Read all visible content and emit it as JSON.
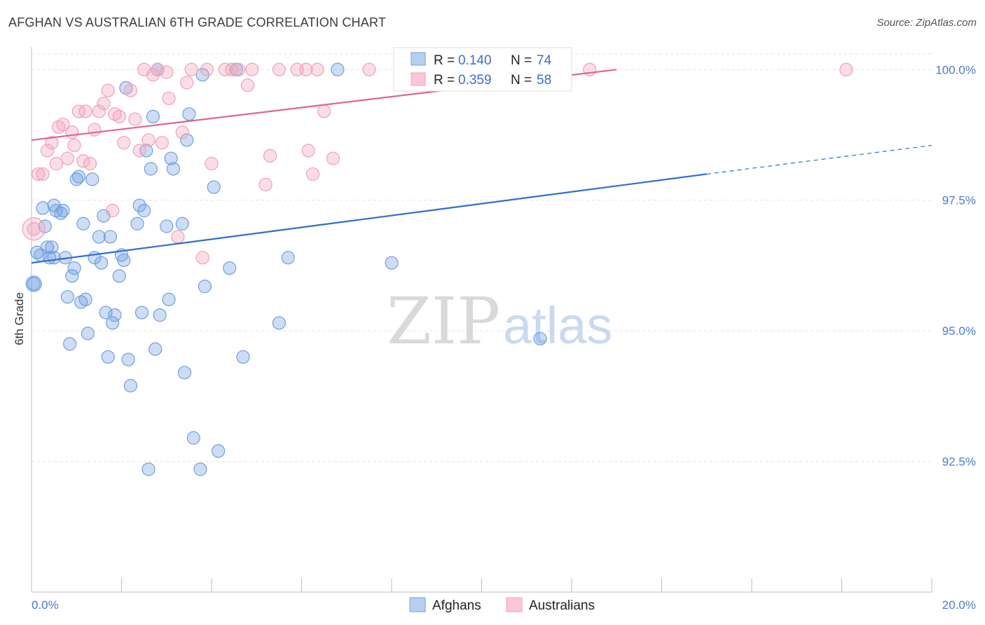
{
  "header": {
    "title": "AFGHAN VS AUSTRALIAN 6TH GRADE CORRELATION CHART",
    "source": "Source: ZipAtlas.com"
  },
  "watermark": {
    "zip": "ZIP",
    "atlas": "atlas"
  },
  "legend": {
    "entries": [
      {
        "r_label": "R =",
        "r_value": "0.140",
        "n_label": "N =",
        "n_value": "74"
      },
      {
        "r_label": "R =",
        "r_value": "0.359",
        "n_label": "N =",
        "n_value": "58"
      }
    ]
  },
  "chart_data": {
    "type": "scatter",
    "title": "AFGHAN VS AUSTRALIAN 6TH GRADE CORRELATION CHART",
    "xlabel": "",
    "ylabel": "6th Grade",
    "xlim": [
      0.0,
      20.0
    ],
    "ylim": [
      90.0,
      100.5
    ],
    "x_tick_labels": [
      "0.0%",
      "20.0%"
    ],
    "y_ticks": [
      92.5,
      95.0,
      97.5,
      100.0
    ],
    "y_tick_labels": [
      "92.5%",
      "95.0%",
      "97.5%",
      "100.0%"
    ],
    "grid": true,
    "legend_position": "top-center",
    "colors": {
      "afghans": "#6f9fe0",
      "australians": "#f0a0b8",
      "afghans_line": "#2b6fd0",
      "australians_line": "#e06590"
    },
    "series": [
      {
        "name": "Afghans",
        "r": 0.14,
        "n": 74,
        "trend": {
          "x0": 0.0,
          "y0": 96.3,
          "x1": 15.0,
          "y1": 98.0,
          "dashed_to_x": 20.0,
          "dashed_to_y": 98.55
        },
        "points": [
          [
            0.05,
            95.9
          ],
          [
            0.12,
            96.5
          ],
          [
            0.2,
            96.45
          ],
          [
            0.25,
            97.35
          ],
          [
            0.3,
            97.0
          ],
          [
            0.35,
            96.6
          ],
          [
            0.4,
            96.4
          ],
          [
            0.45,
            96.6
          ],
          [
            0.5,
            96.4
          ],
          [
            0.5,
            97.4
          ],
          [
            0.55,
            97.3
          ],
          [
            0.65,
            97.25
          ],
          [
            0.7,
            97.3
          ],
          [
            0.75,
            96.4
          ],
          [
            0.8,
            95.65
          ],
          [
            0.85,
            94.75
          ],
          [
            0.9,
            96.05
          ],
          [
            0.95,
            96.2
          ],
          [
            1.0,
            97.9
          ],
          [
            1.05,
            97.95
          ],
          [
            1.1,
            95.55
          ],
          [
            1.15,
            97.05
          ],
          [
            1.2,
            95.6
          ],
          [
            1.25,
            94.95
          ],
          [
            1.35,
            97.9
          ],
          [
            1.4,
            96.4
          ],
          [
            1.5,
            96.8
          ],
          [
            1.55,
            96.3
          ],
          [
            1.6,
            97.2
          ],
          [
            1.65,
            95.35
          ],
          [
            1.7,
            94.5
          ],
          [
            1.75,
            96.8
          ],
          [
            1.8,
            95.15
          ],
          [
            1.85,
            95.3
          ],
          [
            1.95,
            96.05
          ],
          [
            2.0,
            96.45
          ],
          [
            2.05,
            96.35
          ],
          [
            2.1,
            99.65
          ],
          [
            2.15,
            94.45
          ],
          [
            2.2,
            93.95
          ],
          [
            2.35,
            97.05
          ],
          [
            2.4,
            97.4
          ],
          [
            2.45,
            95.35
          ],
          [
            2.5,
            97.3
          ],
          [
            2.55,
            98.45
          ],
          [
            2.6,
            92.35
          ],
          [
            2.65,
            98.1
          ],
          [
            2.7,
            99.1
          ],
          [
            2.75,
            94.65
          ],
          [
            2.8,
            100.0
          ],
          [
            2.85,
            95.3
          ],
          [
            3.0,
            97.0
          ],
          [
            3.05,
            95.6
          ],
          [
            3.1,
            98.3
          ],
          [
            3.15,
            98.1
          ],
          [
            3.35,
            97.05
          ],
          [
            3.4,
            94.2
          ],
          [
            3.45,
            98.65
          ],
          [
            3.5,
            99.15
          ],
          [
            3.6,
            92.95
          ],
          [
            3.75,
            92.35
          ],
          [
            3.8,
            99.9
          ],
          [
            3.85,
            95.85
          ],
          [
            4.05,
            97.75
          ],
          [
            4.15,
            92.7
          ],
          [
            4.4,
            96.2
          ],
          [
            4.55,
            100.0
          ],
          [
            4.7,
            94.5
          ],
          [
            5.5,
            95.15
          ],
          [
            5.7,
            96.4
          ],
          [
            6.8,
            100.0
          ],
          [
            8.0,
            96.3
          ],
          [
            10.4,
            100.0
          ],
          [
            11.3,
            94.85
          ]
        ]
      },
      {
        "name": "Australians",
        "r": 0.359,
        "n": 58,
        "trend": {
          "x0": 0.0,
          "y0": 98.65,
          "x1": 13.0,
          "y1": 100.0
        },
        "points": [
          [
            0.05,
            96.95
          ],
          [
            0.15,
            98.0
          ],
          [
            0.25,
            98.0
          ],
          [
            0.35,
            98.45
          ],
          [
            0.45,
            98.6
          ],
          [
            0.55,
            98.2
          ],
          [
            0.6,
            98.9
          ],
          [
            0.7,
            98.95
          ],
          [
            0.8,
            98.3
          ],
          [
            0.9,
            98.8
          ],
          [
            0.95,
            98.55
          ],
          [
            1.05,
            99.2
          ],
          [
            1.15,
            98.25
          ],
          [
            1.2,
            99.2
          ],
          [
            1.3,
            98.2
          ],
          [
            1.4,
            98.85
          ],
          [
            1.5,
            99.2
          ],
          [
            1.6,
            99.35
          ],
          [
            1.7,
            99.6
          ],
          [
            1.8,
            97.3
          ],
          [
            1.85,
            99.15
          ],
          [
            1.95,
            99.1
          ],
          [
            2.05,
            98.6
          ],
          [
            2.2,
            99.6
          ],
          [
            2.3,
            99.05
          ],
          [
            2.4,
            98.45
          ],
          [
            2.5,
            100.0
          ],
          [
            2.6,
            98.65
          ],
          [
            2.7,
            99.9
          ],
          [
            2.8,
            100.0
          ],
          [
            2.9,
            98.6
          ],
          [
            3.0,
            99.95
          ],
          [
            3.05,
            99.45
          ],
          [
            3.25,
            96.8
          ],
          [
            3.35,
            98.8
          ],
          [
            3.45,
            99.75
          ],
          [
            3.55,
            100.0
          ],
          [
            3.8,
            96.4
          ],
          [
            3.9,
            100.0
          ],
          [
            4.0,
            98.2
          ],
          [
            4.3,
            100.0
          ],
          [
            4.45,
            100.0
          ],
          [
            4.6,
            100.0
          ],
          [
            4.8,
            99.7
          ],
          [
            4.9,
            100.0
          ],
          [
            5.2,
            97.8
          ],
          [
            5.3,
            98.35
          ],
          [
            5.5,
            100.0
          ],
          [
            5.9,
            100.0
          ],
          [
            6.1,
            100.0
          ],
          [
            6.15,
            98.45
          ],
          [
            6.25,
            98.0
          ],
          [
            6.35,
            100.0
          ],
          [
            6.5,
            99.2
          ],
          [
            6.7,
            98.3
          ],
          [
            7.5,
            100.0
          ],
          [
            12.4,
            100.0
          ],
          [
            18.1,
            100.0
          ]
        ]
      }
    ]
  },
  "bottom_legend": {
    "items": [
      "Afghans",
      "Australians"
    ]
  }
}
